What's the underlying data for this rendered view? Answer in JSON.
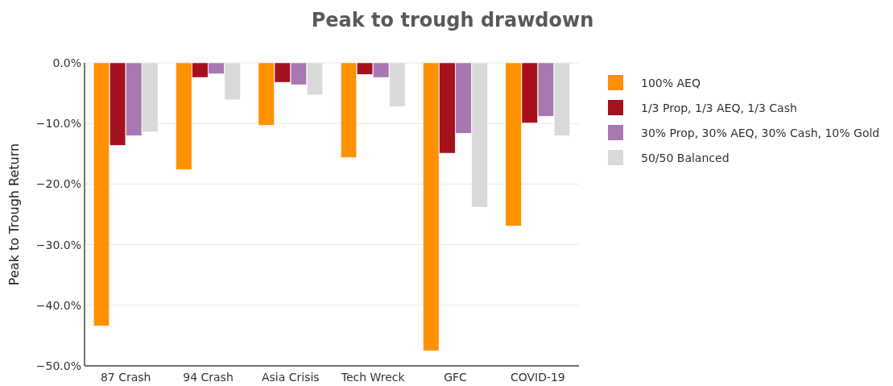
{
  "chart_data": {
    "type": "bar",
    "title": "Peak to trough drawdown",
    "ylabel": "Peak to Trough Return",
    "categories": [
      "87 Crash",
      "94 Crash",
      "Asia Crisis",
      "Tech Wreck",
      "GFC",
      "COVID-19"
    ],
    "series": [
      {
        "name": "100% AEQ",
        "color": "#ff9100",
        "values": [
          -43.4,
          -17.6,
          -10.3,
          -15.6,
          -47.5,
          -26.9
        ]
      },
      {
        "name": "1/3 Prop, 1/3 AEQ, 1/3 Cash",
        "color": "#a6111e",
        "values": [
          -13.6,
          -2.4,
          -3.2,
          -1.9,
          -14.9,
          -9.9
        ]
      },
      {
        "name": "30% Prop, 30% AEQ, 30% Cash, 10% Gold",
        "color": "#a878b2",
        "values": [
          -12.0,
          -1.8,
          -3.6,
          -2.4,
          -11.6,
          -8.8
        ]
      },
      {
        "name": "50/50 Balanced",
        "color": "#d9d9d9",
        "values": [
          -11.4,
          -6.1,
          -5.3,
          -7.2,
          -23.8,
          -12.0
        ]
      }
    ],
    "ylim": [
      -50,
      0
    ],
    "yticks": [
      {
        "value": -50,
        "label": "−50.0%"
      },
      {
        "value": -40,
        "label": "−40.0%"
      },
      {
        "value": -30,
        "label": "−30.0%"
      },
      {
        "value": -20,
        "label": "−20.0%"
      },
      {
        "value": -10,
        "label": "−10.0%"
      },
      {
        "value": 0,
        "label": "0.0%"
      }
    ],
    "grid": "y",
    "legend": "right"
  }
}
